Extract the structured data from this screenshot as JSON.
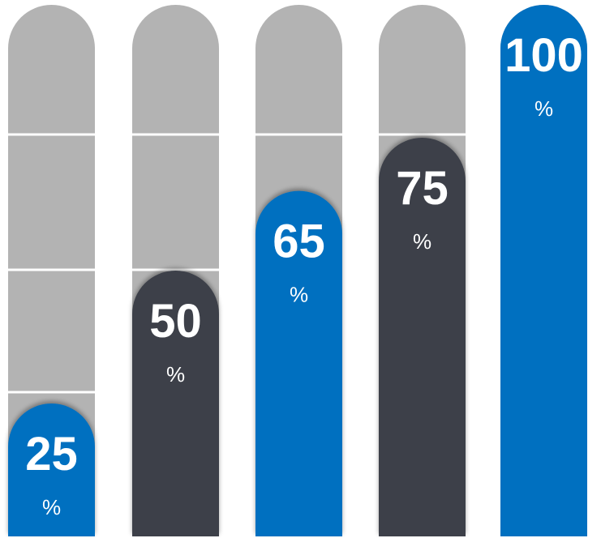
{
  "chart_data": {
    "type": "bar",
    "categories": [
      "",
      "",
      "",
      "",
      ""
    ],
    "values": [
      25,
      50,
      65,
      75,
      100
    ],
    "value_labels": [
      "25",
      "50",
      "65",
      "75",
      "100"
    ],
    "unit_label": "%",
    "ylim": [
      0,
      100
    ],
    "grid": true,
    "title": "",
    "xlabel": "",
    "ylabel": "",
    "colors": {
      "track": "#b3b3b3",
      "blue": "#0070c0",
      "dark": "#3c4049",
      "grid_line": "#ffffff",
      "label": "#ffffff"
    },
    "bar_colors": [
      "blue",
      "dark",
      "blue",
      "dark",
      "blue"
    ]
  }
}
